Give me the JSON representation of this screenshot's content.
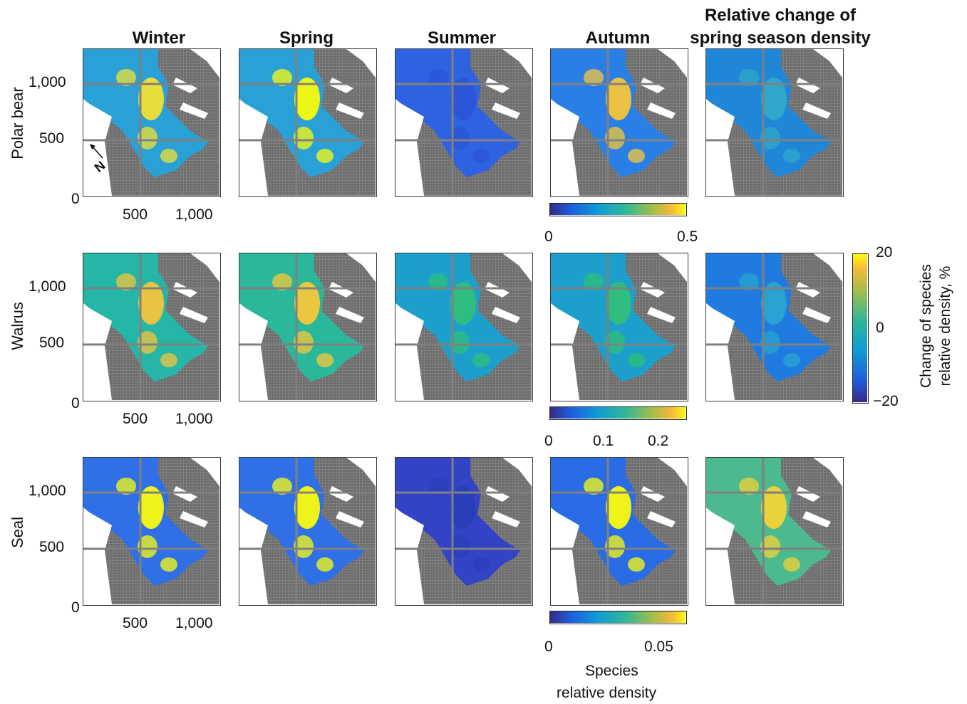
{
  "columns": [
    "Winter",
    "Spring",
    "Summer",
    "Autumn"
  ],
  "change_title": {
    "line1": "Relative change of",
    "line2": "spring season density"
  },
  "rows": [
    "Polar bear",
    "Walrus",
    "Seal"
  ],
  "axes": {
    "y_ticks": [
      "1,000",
      "500",
      "0"
    ],
    "x_ticks": [
      "500",
      "1,000"
    ]
  },
  "north_label": "N",
  "colorbars": [
    {
      "min_label": "0",
      "max_label": "0.5",
      "range": [
        0,
        0.5
      ]
    },
    {
      "labels": [
        "0",
        "0.1",
        "0.2"
      ],
      "range": [
        0,
        0.25
      ]
    },
    {
      "min_label": "0",
      "max_label": "0.05",
      "range": [
        0,
        0.06
      ]
    }
  ],
  "density_label": {
    "line1": "Species",
    "line2": "relative density"
  },
  "change_colorbar": {
    "labels": [
      "20",
      "0",
      "−20"
    ],
    "title_line1": "Change of species",
    "title_line2": "relative density, %",
    "range": [
      -20,
      20
    ]
  },
  "colors": {
    "parula_low": "#3e26a8",
    "parula_mid": "#1fa9c9",
    "parula_green": "#2fbf7a",
    "parula_high": "#fbd634",
    "parula_top": "#f9fb0e",
    "land_gray": "#7a7a7a",
    "grid_line": "#808080"
  }
}
